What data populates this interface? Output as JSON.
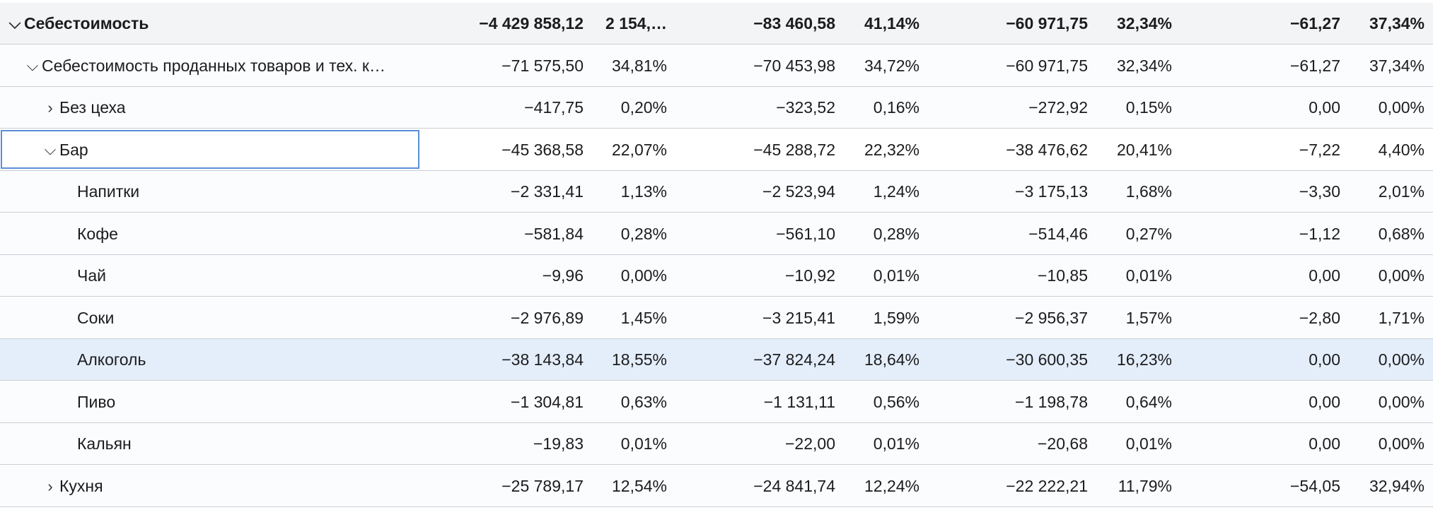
{
  "rows": [
    {
      "level": 0,
      "expander": "down",
      "type": "total",
      "name": "Себестоимость",
      "v": [
        "−4 429 858,12",
        "2 154,…",
        "−83 460,58",
        "41,14%",
        "−60 971,75",
        "32,34%",
        "−61,27",
        "37,34%"
      ]
    },
    {
      "level": 1,
      "expander": "down",
      "type": "sub",
      "name": "Себестоимость проданных товаров и тех. к…",
      "v": [
        "−71 575,50",
        "34,81%",
        "−70 453,98",
        "34,72%",
        "−60 971,75",
        "32,34%",
        "−61,27",
        "37,34%"
      ]
    },
    {
      "level": 2,
      "expander": "right",
      "type": "sub",
      "name": "Без цеха",
      "v": [
        "−417,75",
        "0,20%",
        "−323,52",
        "0,16%",
        "−272,92",
        "0,15%",
        "0,00",
        "0,00%"
      ]
    },
    {
      "level": 2,
      "expander": "down",
      "type": "focused",
      "name": "Бар",
      "v": [
        "−45 368,58",
        "22,07%",
        "−45 288,72",
        "22,32%",
        "−38 476,62",
        "20,41%",
        "−7,22",
        "4,40%"
      ]
    },
    {
      "level": 3,
      "expander": "none",
      "type": "sub",
      "name": "Напитки",
      "v": [
        "−2 331,41",
        "1,13%",
        "−2 523,94",
        "1,24%",
        "−3 175,13",
        "1,68%",
        "−3,30",
        "2,01%"
      ]
    },
    {
      "level": 3,
      "expander": "none",
      "type": "sub",
      "name": "Кофе",
      "v": [
        "−581,84",
        "0,28%",
        "−561,10",
        "0,28%",
        "−514,46",
        "0,27%",
        "−1,12",
        "0,68%"
      ]
    },
    {
      "level": 3,
      "expander": "none",
      "type": "sub",
      "name": "Чай",
      "v": [
        "−9,96",
        "0,00%",
        "−10,92",
        "0,01%",
        "−10,85",
        "0,01%",
        "0,00",
        "0,00%"
      ]
    },
    {
      "level": 3,
      "expander": "none",
      "type": "sub",
      "name": "Соки",
      "v": [
        "−2 976,89",
        "1,45%",
        "−3 215,41",
        "1,59%",
        "−2 956,37",
        "1,57%",
        "−2,80",
        "1,71%"
      ]
    },
    {
      "level": 3,
      "expander": "none",
      "type": "selected",
      "name": "Алкоголь",
      "v": [
        "−38 143,84",
        "18,55%",
        "−37 824,24",
        "18,64%",
        "−30 600,35",
        "16,23%",
        "0,00",
        "0,00%"
      ]
    },
    {
      "level": 3,
      "expander": "none",
      "type": "sub",
      "name": "Пиво",
      "v": [
        "−1 304,81",
        "0,63%",
        "−1 131,11",
        "0,56%",
        "−1 198,78",
        "0,64%",
        "0,00",
        "0,00%"
      ]
    },
    {
      "level": 3,
      "expander": "none",
      "type": "sub",
      "name": "Кальян",
      "v": [
        "−19,83",
        "0,01%",
        "−22,00",
        "0,01%",
        "−20,68",
        "0,01%",
        "0,00",
        "0,00%"
      ]
    },
    {
      "level": 2,
      "expander": "right",
      "type": "sub",
      "name": "Кухня",
      "v": [
        "−25 789,17",
        "12,54%",
        "−24 841,74",
        "12,24%",
        "−22 222,21",
        "11,79%",
        "−54,05",
        "32,94%"
      ]
    }
  ],
  "icons": {
    "expanded": "chevron-down-icon",
    "collapsed": "chevron-right-icon"
  },
  "colors": {
    "selected_row": "#e4eefb",
    "focus_border": "#5b8fd6",
    "total_row": "#f3f4f6",
    "row_divider": "#c9cdd4"
  }
}
